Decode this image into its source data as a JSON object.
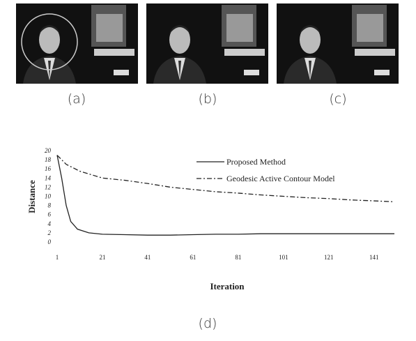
{
  "panels": [
    "(a)",
    "(b)",
    "(c)"
  ],
  "chart_data": {
    "type": "line",
    "caption": "(d)",
    "x_label": "Iteration",
    "y_label": "Distance",
    "xlim": [
      1,
      150
    ],
    "ylim": [
      0,
      20
    ],
    "xticks": [
      1,
      21,
      41,
      61,
      81,
      101,
      121,
      141
    ],
    "yticks": [
      0,
      2,
      4,
      6,
      8,
      10,
      12,
      14,
      16,
      18,
      20
    ],
    "legend": "upper right",
    "series": [
      {
        "name": "Proposed Method",
        "color": "#222222",
        "style": "solid",
        "x": [
          1,
          3,
          5,
          7,
          10,
          15,
          21,
          31,
          41,
          51,
          61,
          71,
          81,
          91,
          101,
          111,
          121,
          131,
          141,
          150
        ],
        "values": [
          19,
          14,
          8,
          4.5,
          2.8,
          2,
          1.7,
          1.6,
          1.5,
          1.5,
          1.6,
          1.7,
          1.7,
          1.8,
          1.8,
          1.8,
          1.8,
          1.8,
          1.8,
          1.8
        ]
      },
      {
        "name": "Geodesic Active Contour Model",
        "color": "#222222",
        "style": "dash-dot",
        "x": [
          1,
          5,
          11,
          21,
          31,
          41,
          51,
          61,
          71,
          81,
          91,
          101,
          111,
          121,
          131,
          141,
          150
        ],
        "values": [
          19,
          17,
          15.5,
          14,
          13.5,
          12.8,
          12,
          11.5,
          11,
          10.7,
          10.3,
          10,
          9.7,
          9.5,
          9.2,
          9,
          8.8
        ]
      }
    ]
  }
}
